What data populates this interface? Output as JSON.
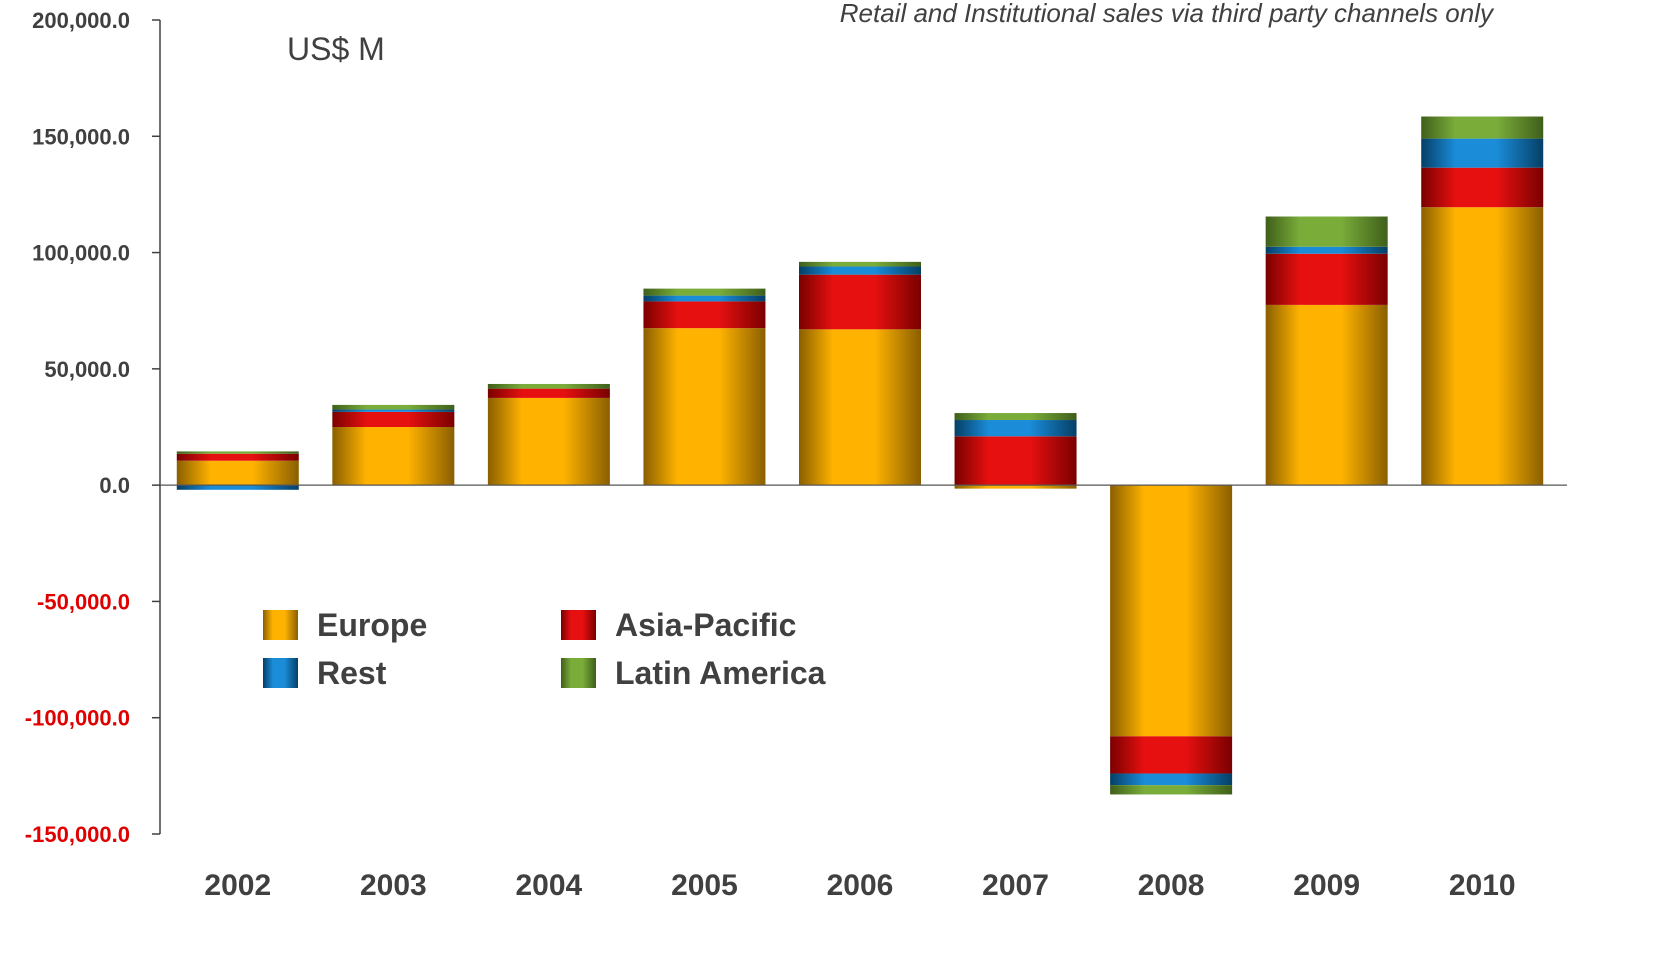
{
  "chart_data": {
    "type": "bar",
    "stacked": true,
    "unit_label": "US$ M",
    "note": "Retail and Institutional sales via third party channels only",
    "categories": [
      "2002",
      "2003",
      "2004",
      "2005",
      "2006",
      "2007",
      "2008",
      "2009",
      "2010"
    ],
    "series": [
      {
        "name": "Europe",
        "key": "europe",
        "values": [
          10500,
          25000,
          37500,
          67500,
          67000,
          -1500,
          -108000,
          77500,
          119500
        ]
      },
      {
        "name": "Asia-Pacific",
        "key": "asia",
        "values": [
          3000,
          6500,
          4000,
          11500,
          23500,
          21000,
          -16000,
          22000,
          17000
        ]
      },
      {
        "name": "Rest",
        "key": "rest",
        "values": [
          -2000,
          1000,
          0,
          2500,
          3500,
          7000,
          -5000,
          3000,
          12500
        ]
      },
      {
        "name": "Latin America",
        "key": "latam",
        "values": [
          1000,
          2000,
          2000,
          3000,
          2000,
          3000,
          -4000,
          13000,
          9500
        ]
      }
    ],
    "stack_order": [
      "europe",
      "asia",
      "rest",
      "latam"
    ],
    "legend_order": [
      "europe",
      "asia",
      "rest",
      "latam"
    ],
    "ylim": [
      -150000,
      200000
    ],
    "yticks": [
      200000,
      150000,
      100000,
      50000,
      0,
      -50000,
      -100000,
      -150000
    ],
    "ytick_labels": [
      "200,000.0",
      "150,000.0",
      "100,000.0",
      "50,000.0",
      "0.0",
      "-50,000.0",
      "-100,000.0",
      "-150,000.0"
    ],
    "negative_tick_color": "#e00000",
    "positive_tick_color": "#404040",
    "legend_position": "lower-left",
    "grid": false,
    "colors": {
      "europe": {
        "dark": "#8a5f00",
        "light": "#ffb300"
      },
      "asia": {
        "dark": "#7a0000",
        "light": "#e61010"
      },
      "rest": {
        "dark": "#053f66",
        "light": "#1a8cd8"
      },
      "latam": {
        "dark": "#3f5f1a",
        "light": "#7aac3a"
      }
    }
  }
}
